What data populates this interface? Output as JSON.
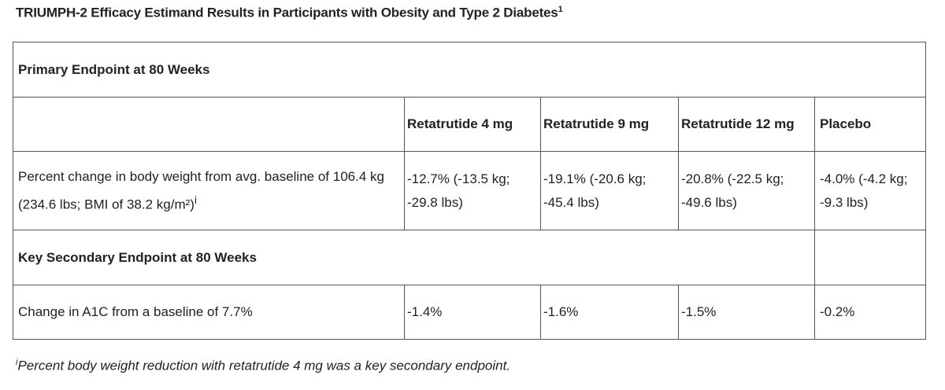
{
  "title": {
    "text": "TRIUMPH-2 Efficacy Estimand Results in Participants with Obesity and Type 2 Diabetes",
    "sup": "1"
  },
  "table": {
    "primary_header": "Primary Endpoint at 80 Weeks",
    "columns": [
      "Retatrutide 4 mg",
      "Retatrutide 9 mg",
      "Retatrutide 12 mg",
      "Placebo"
    ],
    "row_weight": {
      "label": "Percent change in body weight from avg. baseline of 106.4 kg (234.6 lbs; BMI of 38.2 kg/m²)",
      "label_sup": "i",
      "values": [
        "-12.7% (-13.5 kg; -29.8 lbs)",
        "-19.1% (-20.6 kg; -45.4 lbs)",
        "-20.8% (-22.5 kg; -49.6 lbs)",
        "-4.0% (-4.2 kg; -9.3 lbs)"
      ]
    },
    "secondary_header": "Key Secondary Endpoint at 80 Weeks",
    "row_a1c": {
      "label": "Change in A1C from a baseline of 7.7%",
      "values": [
        "-1.4%",
        "-1.6%",
        "-1.5%",
        "-0.2%"
      ]
    }
  },
  "footnote": {
    "sup": "i",
    "text": "Percent body weight reduction with retatrutide 4 mg was a key secondary endpoint."
  }
}
